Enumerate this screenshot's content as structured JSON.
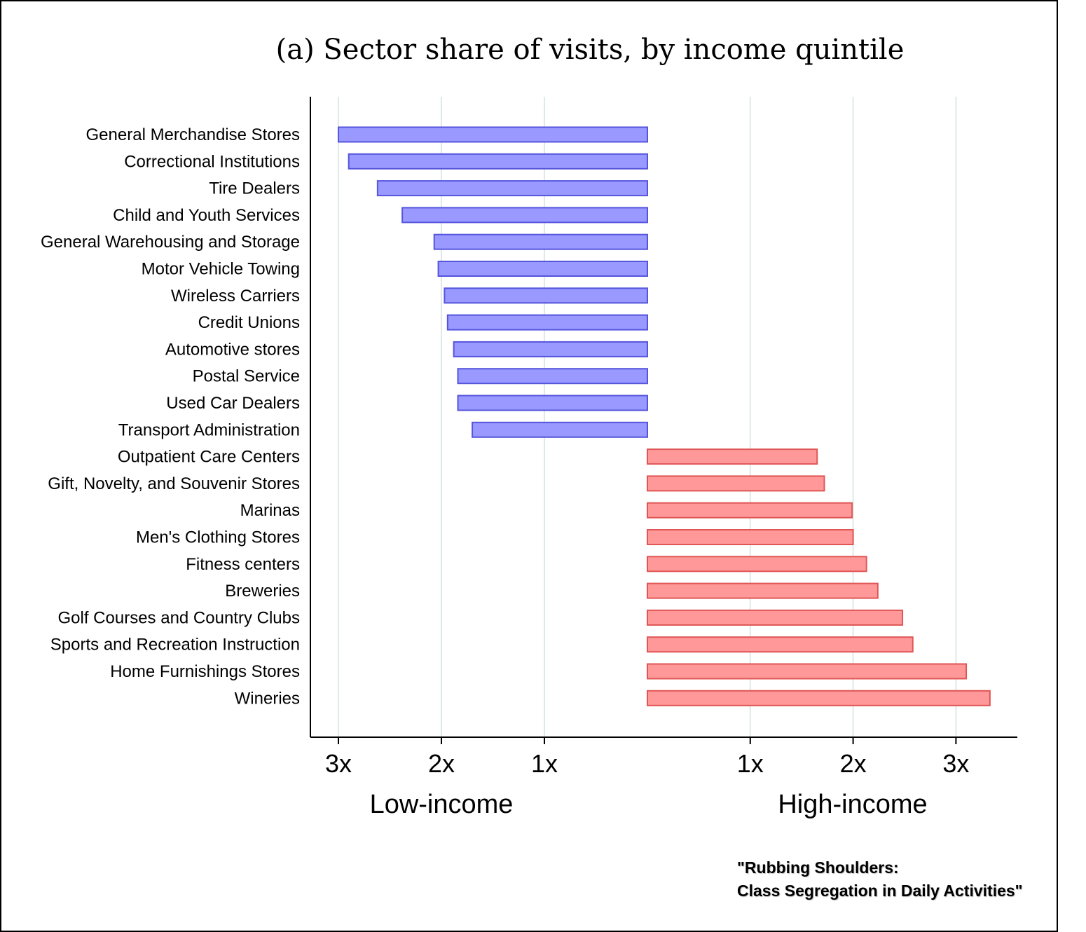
{
  "chart_data": {
    "type": "bar",
    "title": "(a) Sector share of visits, by income quintile",
    "categories": [
      "General Merchandise Stores",
      "Correctional Institutions",
      "Tire Dealers",
      "Child and Youth Services",
      "General Warehousing and Storage",
      "Motor Vehicle Towing",
      "Wireless Carriers",
      "Credit Unions",
      "Automotive stores",
      "Postal Service",
      "Used Car Dealers",
      "Transport Administration",
      "Outpatient Care Centers",
      "Gift, Novelty, and Souvenir Stores",
      "Marinas",
      "Men's Clothing Stores",
      "Fitness centers",
      "Breweries",
      "Golf Courses and Country Clubs",
      "Sports and Recreation Instruction",
      "Home Furnishings Stores",
      "Wineries"
    ],
    "series": [
      {
        "name": "Low-income",
        "color": "#9999ff",
        "stroke": "#5555dd",
        "values": [
          3.0,
          2.9,
          2.62,
          2.38,
          2.07,
          2.03,
          1.97,
          1.94,
          1.88,
          1.84,
          1.84,
          1.7,
          null,
          null,
          null,
          null,
          null,
          null,
          null,
          null,
          null,
          null
        ]
      },
      {
        "name": "High-income",
        "color": "#ff9999",
        "stroke": "#e05555",
        "values": [
          null,
          null,
          null,
          null,
          null,
          null,
          null,
          null,
          null,
          null,
          null,
          null,
          1.65,
          1.72,
          1.99,
          2.0,
          2.13,
          2.24,
          2.48,
          2.58,
          3.1,
          3.33
        ]
      }
    ],
    "low_axis": {
      "label": "Low-income",
      "ticks": [
        "3x",
        "2x",
        "1x"
      ],
      "tick_values": [
        3,
        2,
        1
      ]
    },
    "high_axis": {
      "label": "High-income",
      "ticks": [
        "1x",
        "2x",
        "3x"
      ],
      "tick_values": [
        1,
        2,
        3
      ]
    },
    "grid": true
  },
  "credit": {
    "line1": "\"Rubbing Shoulders:",
    "line2": "Class Segregation in Daily Activities\""
  }
}
